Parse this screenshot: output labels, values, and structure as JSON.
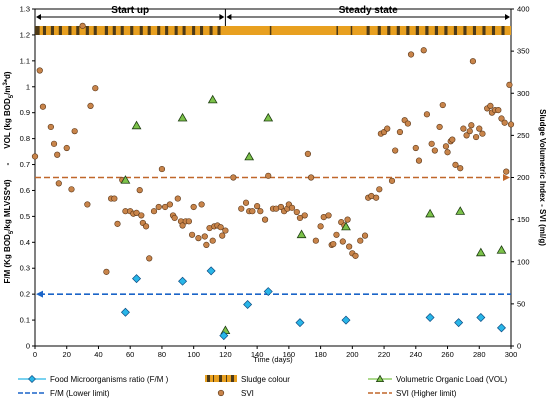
{
  "chart_data": {
    "type": "scatter",
    "x": {
      "label": "Time (days)",
      "range": [
        0,
        300
      ],
      "ticks": [
        0,
        20,
        40,
        60,
        80,
        100,
        120,
        140,
        160,
        180,
        200,
        220,
        240,
        260,
        280,
        300
      ]
    },
    "y_left": {
      "label_parts": [
        "F/M (Kg BOD",
        "5",
        "/kg MLVSS*d)",
        "-",
        "VOL (kg BOD",
        "5",
        "/m",
        "3",
        "*d)"
      ],
      "range": [
        0,
        1.3
      ],
      "ticks": [
        "0",
        "0.1",
        "0.2",
        "0.3",
        "0.4",
        "0.5",
        "0.6",
        "0.7",
        "0.8",
        "0.9",
        "1",
        "1.1",
        "1.2",
        "1.3"
      ]
    },
    "y_right": {
      "label": "Sludge Volumetric Index - SVI (ml/g)",
      "range": [
        0,
        400
      ],
      "ticks": [
        "0",
        "50",
        "100",
        "150",
        "200",
        "250",
        "300",
        "350",
        "400"
      ]
    },
    "phases": [
      {
        "label": "Start up",
        "from": 0,
        "to": 120
      },
      {
        "label": "Steady state",
        "from": 120,
        "to": 300
      }
    ],
    "colors": {
      "fm": "#29b6e8",
      "fm_line": "#1a64c8",
      "vol": "#7cc24a",
      "svi": "#c8844a",
      "svi_line": "#c0672a",
      "sludge_light": "#e8a020",
      "sludge_dark": "#4d3a18"
    },
    "fm_lower_limit": 0.2,
    "svi_higher_limit": 200,
    "series": [
      {
        "name": "Food Microorganisms ratio (F/M )",
        "axis": "left",
        "marker": "diamond",
        "points": [
          [
            57,
            0.13
          ],
          [
            64,
            0.26
          ],
          [
            93,
            0.25
          ],
          [
            111,
            0.29
          ],
          [
            119,
            0.04
          ],
          [
            134,
            0.16
          ],
          [
            147,
            0.21
          ],
          [
            167,
            0.09
          ],
          [
            196,
            0.1
          ],
          [
            249,
            0.11
          ],
          [
            267,
            0.09
          ],
          [
            281,
            0.11
          ],
          [
            294,
            0.07
          ]
        ]
      },
      {
        "name": "Volumetric Organic Load  (VOL)",
        "axis": "left",
        "marker": "triangle",
        "points": [
          [
            57,
            0.64
          ],
          [
            64,
            0.85
          ],
          [
            93,
            0.88
          ],
          [
            112,
            0.95
          ],
          [
            120,
            0.06
          ],
          [
            135,
            0.73
          ],
          [
            147,
            0.88
          ],
          [
            168,
            0.43
          ],
          [
            196,
            0.46
          ],
          [
            249,
            0.51
          ],
          [
            268,
            0.52
          ],
          [
            281,
            0.36
          ],
          [
            294,
            0.37
          ]
        ]
      },
      {
        "name": "SVI",
        "axis": "right",
        "marker": "circle",
        "points": [
          [
            0,
            225
          ],
          [
            3,
            327
          ],
          [
            5,
            284
          ],
          [
            10,
            260
          ],
          [
            12,
            240
          ],
          [
            14,
            227
          ],
          [
            15,
            193
          ],
          [
            20,
            235
          ],
          [
            23,
            186
          ],
          [
            25,
            255
          ],
          [
            30,
            380
          ],
          [
            33,
            168
          ],
          [
            35,
            285
          ],
          [
            38,
            306
          ],
          [
            45,
            88
          ],
          [
            48,
            175
          ],
          [
            50,
            175
          ],
          [
            52,
            145
          ],
          [
            55,
            197
          ],
          [
            57,
            160
          ],
          [
            60,
            160
          ],
          [
            62,
            157
          ],
          [
            64,
            158
          ],
          [
            66,
            185
          ],
          [
            67,
            155
          ],
          [
            68,
            146
          ],
          [
            70,
            142
          ],
          [
            72,
            104
          ],
          [
            75,
            160
          ],
          [
            78,
            165
          ],
          [
            80,
            210
          ],
          [
            82,
            165
          ],
          [
            85,
            168
          ],
          [
            87,
            155
          ],
          [
            88,
            152
          ],
          [
            90,
            175
          ],
          [
            92,
            148
          ],
          [
            93,
            143
          ],
          [
            95,
            148
          ],
          [
            97,
            148
          ],
          [
            99,
            132
          ],
          [
            100,
            165
          ],
          [
            103,
            128
          ],
          [
            105,
            168
          ],
          [
            107,
            130
          ],
          [
            108,
            120
          ],
          [
            110,
            140
          ],
          [
            112,
            125
          ],
          [
            113,
            142
          ],
          [
            115,
            143
          ],
          [
            117,
            141
          ],
          [
            118,
            131
          ],
          [
            120,
            137
          ],
          [
            125,
            200
          ],
          [
            130,
            163
          ],
          [
            133,
            170
          ],
          [
            135,
            160
          ],
          [
            137,
            160
          ],
          [
            140,
            166
          ],
          [
            142,
            160
          ],
          [
            145,
            150
          ],
          [
            147,
            202
          ],
          [
            150,
            163
          ],
          [
            152,
            163
          ],
          [
            155,
            165
          ],
          [
            157,
            160
          ],
          [
            159,
            163
          ],
          [
            160,
            168
          ],
          [
            162,
            164
          ],
          [
            165,
            159
          ],
          [
            167,
            152
          ],
          [
            170,
            155
          ],
          [
            172,
            228
          ],
          [
            174,
            200
          ],
          [
            177,
            125
          ],
          [
            180,
            142
          ],
          [
            182,
            153
          ],
          [
            185,
            155
          ],
          [
            187,
            120
          ],
          [
            188,
            121
          ],
          [
            190,
            132
          ],
          [
            193,
            147
          ],
          [
            194,
            124
          ],
          [
            195,
            143
          ],
          [
            197,
            150
          ],
          [
            198,
            118
          ],
          [
            200,
            110
          ],
          [
            202,
            107
          ],
          [
            205,
            125
          ],
          [
            208,
            131
          ],
          [
            210,
            176
          ],
          [
            212,
            178
          ],
          [
            215,
            176
          ],
          [
            217,
            186
          ],
          [
            218,
            252
          ],
          [
            220,
            254
          ],
          [
            222,
            258
          ],
          [
            225,
            196
          ],
          [
            227,
            232
          ],
          [
            230,
            254
          ],
          [
            233,
            268
          ],
          [
            235,
            264
          ],
          [
            237,
            346
          ],
          [
            240,
            235
          ],
          [
            242,
            220
          ],
          [
            245,
            351
          ],
          [
            247,
            275
          ],
          [
            250,
            240
          ],
          [
            252,
            232
          ],
          [
            255,
            260
          ],
          [
            257,
            286
          ],
          [
            259,
            237
          ],
          [
            260,
            230
          ],
          [
            262,
            243
          ],
          [
            263,
            245
          ],
          [
            265,
            215
          ],
          [
            268,
            211
          ],
          [
            270,
            258
          ],
          [
            272,
            250
          ],
          [
            274,
            255
          ],
          [
            275,
            262
          ],
          [
            276,
            338
          ],
          [
            278,
            248
          ],
          [
            280,
            258
          ],
          [
            282,
            252
          ],
          [
            285,
            282
          ],
          [
            287,
            285
          ],
          [
            288,
            277
          ],
          [
            290,
            280
          ],
          [
            292,
            280
          ],
          [
            294,
            270
          ],
          [
            296,
            265
          ],
          [
            297,
            207
          ],
          [
            299,
            310
          ],
          [
            300,
            263
          ]
        ]
      }
    ],
    "sludge_band": [
      {
        "from": 0,
        "to": 3,
        "c": "dark"
      },
      {
        "from": 3,
        "to": 5,
        "c": "light"
      },
      {
        "from": 5,
        "to": 7,
        "c": "dark"
      },
      {
        "from": 7,
        "to": 10,
        "c": "light"
      },
      {
        "from": 10,
        "to": 12,
        "c": "dark"
      },
      {
        "from": 12,
        "to": 15,
        "c": "light"
      },
      {
        "from": 15,
        "to": 17,
        "c": "dark"
      },
      {
        "from": 17,
        "to": 21,
        "c": "light"
      },
      {
        "from": 21,
        "to": 23,
        "c": "dark"
      },
      {
        "from": 23,
        "to": 26,
        "c": "light"
      },
      {
        "from": 26,
        "to": 28,
        "c": "dark"
      },
      {
        "from": 28,
        "to": 32,
        "c": "light"
      },
      {
        "from": 32,
        "to": 34,
        "c": "dark"
      },
      {
        "from": 34,
        "to": 37,
        "c": "light"
      },
      {
        "from": 37,
        "to": 39,
        "c": "dark"
      },
      {
        "from": 39,
        "to": 44,
        "c": "light"
      },
      {
        "from": 44,
        "to": 46,
        "c": "dark"
      },
      {
        "from": 46,
        "to": 49,
        "c": "light"
      },
      {
        "from": 49,
        "to": 51,
        "c": "dark"
      },
      {
        "from": 51,
        "to": 54,
        "c": "light"
      },
      {
        "from": 54,
        "to": 56,
        "c": "dark"
      },
      {
        "from": 56,
        "to": 60,
        "c": "light"
      },
      {
        "from": 60,
        "to": 62,
        "c": "dark"
      },
      {
        "from": 62,
        "to": 66,
        "c": "light"
      },
      {
        "from": 66,
        "to": 68,
        "c": "dark"
      },
      {
        "from": 68,
        "to": 71,
        "c": "light"
      },
      {
        "from": 71,
        "to": 73,
        "c": "dark"
      },
      {
        "from": 73,
        "to": 77,
        "c": "light"
      },
      {
        "from": 77,
        "to": 79,
        "c": "dark"
      },
      {
        "from": 79,
        "to": 82,
        "c": "light"
      },
      {
        "from": 82,
        "to": 84,
        "c": "dark"
      },
      {
        "from": 84,
        "to": 88,
        "c": "light"
      },
      {
        "from": 88,
        "to": 90,
        "c": "dark"
      },
      {
        "from": 90,
        "to": 93,
        "c": "light"
      },
      {
        "from": 93,
        "to": 95,
        "c": "dark"
      },
      {
        "from": 95,
        "to": 99,
        "c": "light"
      },
      {
        "from": 99,
        "to": 101,
        "c": "dark"
      },
      {
        "from": 101,
        "to": 104,
        "c": "light"
      },
      {
        "from": 104,
        "to": 106,
        "c": "dark"
      },
      {
        "from": 106,
        "to": 110,
        "c": "light"
      },
      {
        "from": 110,
        "to": 112,
        "c": "dark"
      },
      {
        "from": 112,
        "to": 115,
        "c": "light"
      },
      {
        "from": 115,
        "to": 117,
        "c": "dark"
      },
      {
        "from": 117,
        "to": 148,
        "c": "light"
      },
      {
        "from": 148,
        "to": 149,
        "c": "dark"
      },
      {
        "from": 149,
        "to": 190,
        "c": "light"
      },
      {
        "from": 190,
        "to": 191,
        "c": "dark"
      },
      {
        "from": 191,
        "to": 199,
        "c": "light"
      },
      {
        "from": 199,
        "to": 200,
        "c": "dark"
      },
      {
        "from": 200,
        "to": 209,
        "c": "light"
      },
      {
        "from": 209,
        "to": 211,
        "c": "dark"
      },
      {
        "from": 211,
        "to": 216,
        "c": "light"
      },
      {
        "from": 216,
        "to": 218,
        "c": "dark"
      },
      {
        "from": 218,
        "to": 222,
        "c": "light"
      },
      {
        "from": 222,
        "to": 224,
        "c": "dark"
      },
      {
        "from": 224,
        "to": 228,
        "c": "light"
      },
      {
        "from": 228,
        "to": 230,
        "c": "dark"
      },
      {
        "from": 230,
        "to": 234,
        "c": "light"
      },
      {
        "from": 234,
        "to": 236,
        "c": "dark"
      },
      {
        "from": 236,
        "to": 240,
        "c": "light"
      },
      {
        "from": 240,
        "to": 242,
        "c": "dark"
      },
      {
        "from": 242,
        "to": 246,
        "c": "light"
      },
      {
        "from": 246,
        "to": 248,
        "c": "dark"
      },
      {
        "from": 248,
        "to": 252,
        "c": "light"
      },
      {
        "from": 252,
        "to": 254,
        "c": "dark"
      },
      {
        "from": 254,
        "to": 258,
        "c": "light"
      },
      {
        "from": 258,
        "to": 260,
        "c": "dark"
      },
      {
        "from": 260,
        "to": 264,
        "c": "light"
      },
      {
        "from": 264,
        "to": 266,
        "c": "dark"
      },
      {
        "from": 266,
        "to": 270,
        "c": "light"
      },
      {
        "from": 270,
        "to": 272,
        "c": "dark"
      },
      {
        "from": 272,
        "to": 276,
        "c": "light"
      },
      {
        "from": 276,
        "to": 278,
        "c": "dark"
      },
      {
        "from": 278,
        "to": 282,
        "c": "light"
      },
      {
        "from": 282,
        "to": 284,
        "c": "dark"
      },
      {
        "from": 284,
        "to": 288,
        "c": "light"
      },
      {
        "from": 288,
        "to": 290,
        "c": "dark"
      },
      {
        "from": 290,
        "to": 294,
        "c": "light"
      },
      {
        "from": 294,
        "to": 296,
        "c": "dark"
      },
      {
        "from": 296,
        "to": 300,
        "c": "light"
      }
    ],
    "legend": {
      "fm": "Food Microorganisms ratio (F/M )",
      "sludge": "Sludge colour",
      "vol": "Volumetric Organic Load  (VOL)",
      "fm_limit": "F/M (Lower limit)",
      "svi": "SVI",
      "svi_limit": "SVI (Higher limit)"
    }
  }
}
